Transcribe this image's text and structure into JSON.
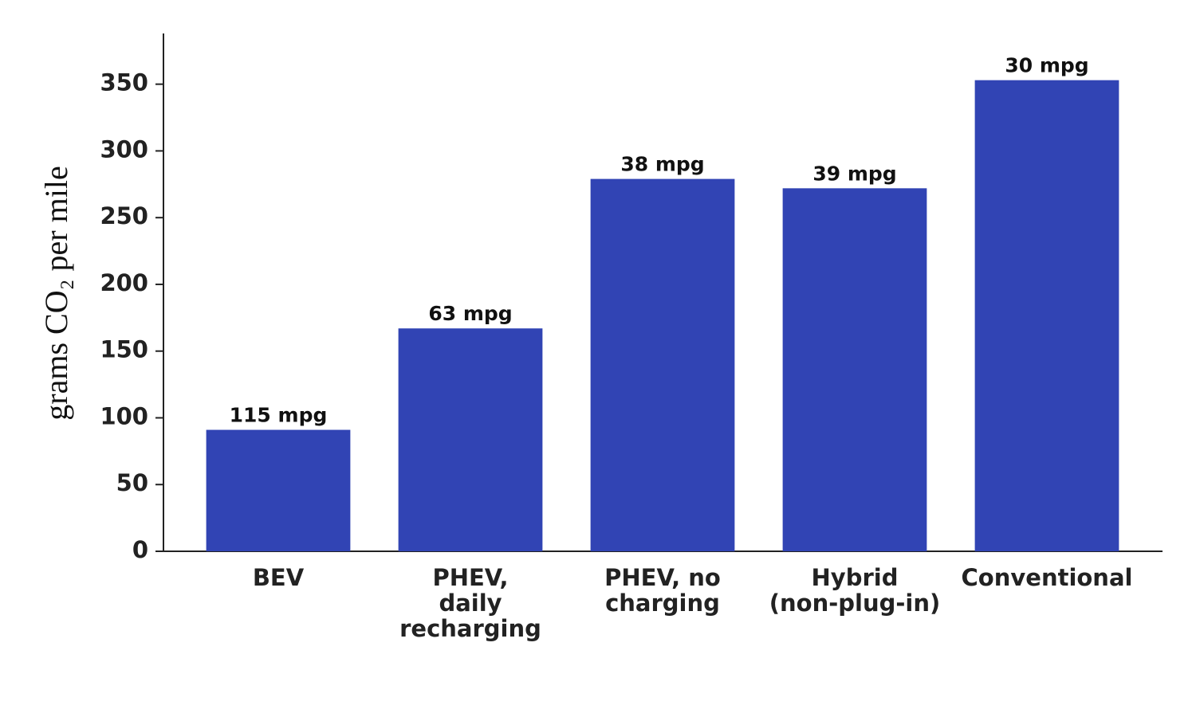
{
  "chart_data": {
    "type": "bar",
    "y_label": "grams CO₂ per mile",
    "categories": [
      "BEV",
      "PHEV,\ndaily\nrecharging",
      "PHEV, no\ncharging",
      "Hybrid\n(non-plug-in)",
      "Conventional"
    ],
    "values": [
      91,
      167,
      279,
      272,
      353
    ],
    "annotations": [
      "115 mpg",
      "63 mpg",
      "38 mpg",
      "39 mpg",
      "30 mpg"
    ],
    "color": "#3144b4",
    "ylim": [
      0,
      388
    ],
    "yticks": [
      0,
      50,
      100,
      150,
      200,
      250,
      300,
      350
    ],
    "grid": false
  }
}
